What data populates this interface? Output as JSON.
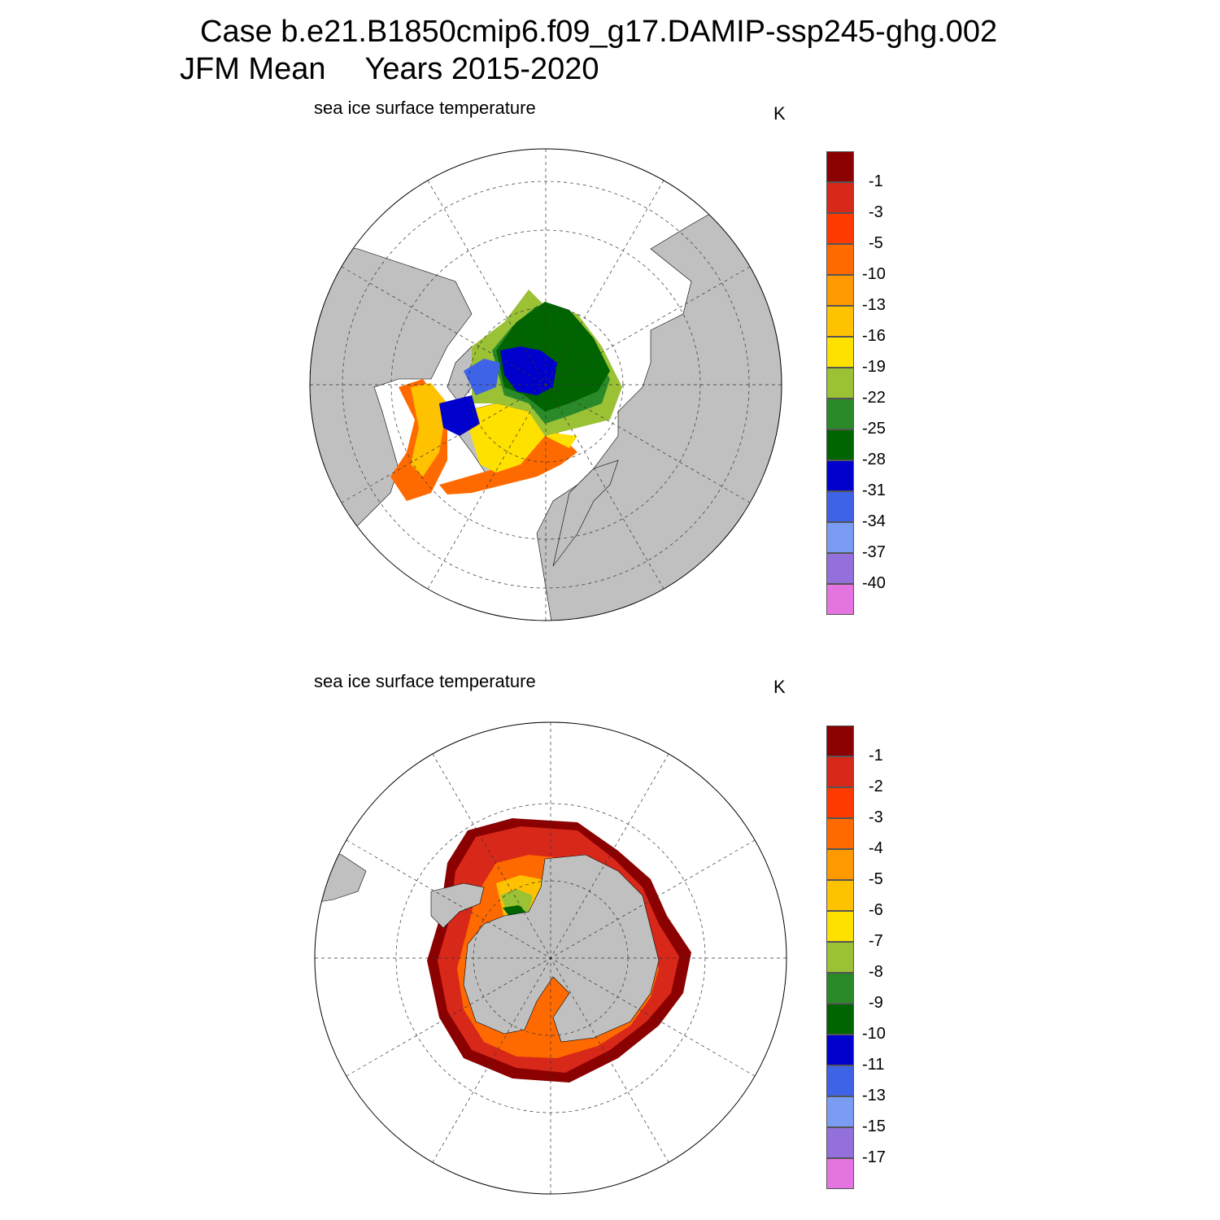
{
  "title": {
    "line1": "Case b.e21.B1850cmip6.f09_g17.DAMIP-ssp245-ghg.002",
    "season": "JFM Mean",
    "years": "Years 2015-2020"
  },
  "panels": [
    {
      "id": "arctic",
      "title": "sea ice surface temperature",
      "units": "K",
      "hemisphere": "north",
      "colorbar": {
        "labels": [
          "-1",
          "-3",
          "-5",
          "-10",
          "-13",
          "-16",
          "-19",
          "-22",
          "-25",
          "-28",
          "-31",
          "-34",
          "-37",
          "-40"
        ],
        "colors": [
          "#8b0000",
          "#d7281a",
          "#ff3a00",
          "#ff6a00",
          "#ff9900",
          "#ffc200",
          "#ffe100",
          "#9bc135",
          "#2a8a2a",
          "#006400",
          "#0000cd",
          "#3e63e6",
          "#7b9cf3",
          "#9370db",
          "#e474e0"
        ]
      }
    },
    {
      "id": "antarctic",
      "title": "sea ice surface temperature",
      "units": "K",
      "hemisphere": "south",
      "colorbar": {
        "labels": [
          "-1",
          "-2",
          "-3",
          "-4",
          "-5",
          "-6",
          "-7",
          "-8",
          "-9",
          "-10",
          "-11",
          "-13",
          "-15",
          "-17"
        ],
        "colors": [
          "#8b0000",
          "#d7281a",
          "#ff3a00",
          "#ff6a00",
          "#ff9900",
          "#ffc200",
          "#ffe100",
          "#9bc135",
          "#2a8a2a",
          "#006400",
          "#0000cd",
          "#3e63e6",
          "#7b9cf3",
          "#9370db",
          "#e474e0"
        ]
      }
    }
  ]
}
